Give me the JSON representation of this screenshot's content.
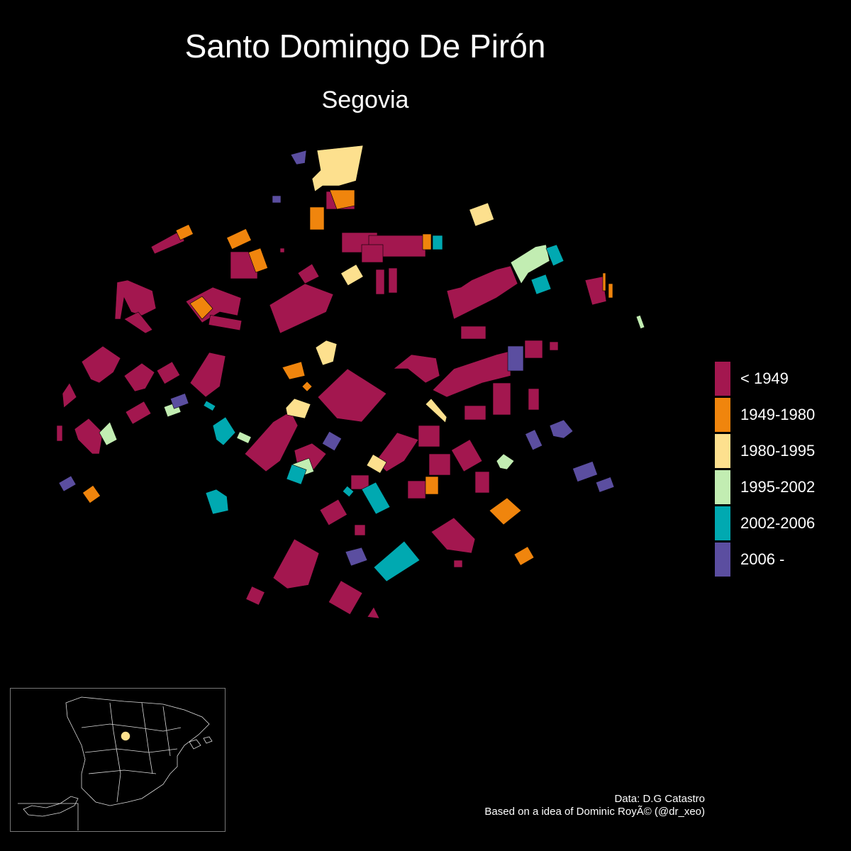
{
  "title": "Santo Domingo De Pirón",
  "subtitle": "Segovia",
  "legend": {
    "items": [
      {
        "label": "< 1949",
        "color": "#a3174f"
      },
      {
        "label": "1949-1980",
        "color": "#f0850d"
      },
      {
        "label": "1980-1995",
        "color": "#fde08e"
      },
      {
        "label": "1995-2002",
        "color": "#c2edb2"
      },
      {
        "label": "2002-2006",
        "color": "#00a9b1"
      },
      {
        "label": "2006 -",
        "color": "#5b4ea0"
      }
    ]
  },
  "credits": {
    "line1": "Data: D.G Catastro",
    "line2": "Based on a idea of Dominic RoyÃ© (@dr_xeo)"
  },
  "inset": {
    "marker_color": "#fde08e"
  }
}
